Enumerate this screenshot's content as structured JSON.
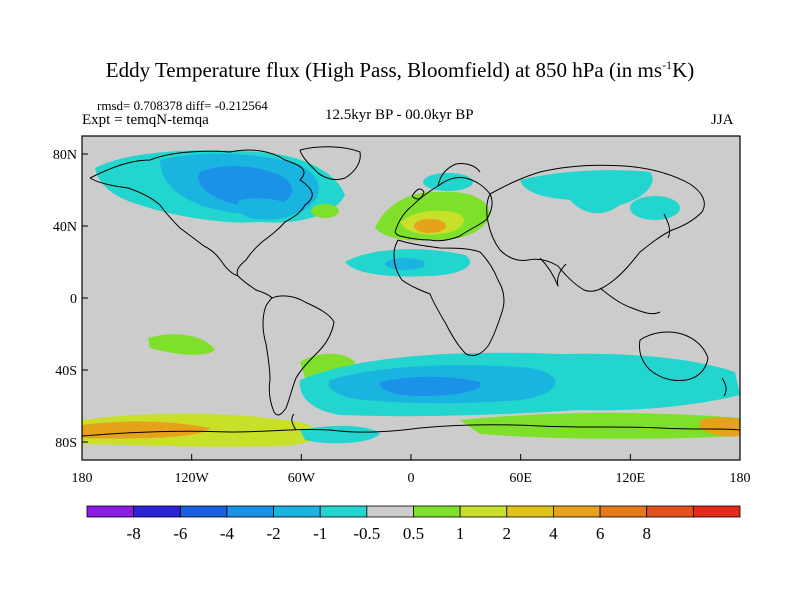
{
  "title": {
    "main": "Eddy Temperature flux (High Pass, Bloomfield) at 850 hPa (in ms",
    "sup": "-1",
    "end": "K)"
  },
  "stats": "rmsd= 0.708378 diff= -0.212564",
  "expt": "Expt = temqN-temqa",
  "period": "12.5kyr BP - 00.0kyr BP",
  "season": "JJA",
  "axes": {
    "x_ticks": [
      "180",
      "120W",
      "60W",
      "0",
      "60E",
      "120E",
      "180"
    ],
    "y_ticks": [
      "80N",
      "40N",
      "0",
      "40S",
      "80S"
    ]
  },
  "colorbar": {
    "colors": [
      "#8c1be6",
      "#2b23d8",
      "#1a5fe0",
      "#1a92e8",
      "#1ab4e0",
      "#22d6cf",
      "#cccccc",
      "#7ee02a",
      "#c8e02a",
      "#e0c21a",
      "#e6a21a",
      "#e67a1a",
      "#e6501a",
      "#e62a1a"
    ],
    "labels": [
      "-8",
      "-6",
      "-4",
      "-2",
      "-1",
      "-0.5",
      "0.5",
      "1",
      "2",
      "4",
      "6",
      "8"
    ]
  }
}
